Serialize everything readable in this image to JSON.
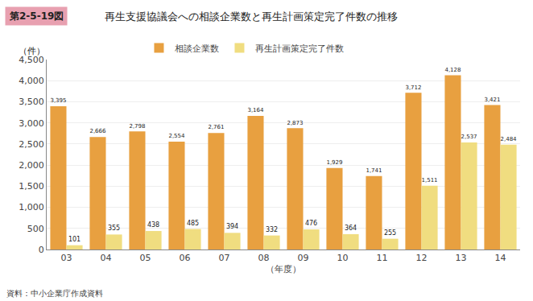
{
  "chart_data": {
    "type": "bar",
    "title": "再生支援協議会への相談企業数と再生計画策定完了件数の推移",
    "annotations": [
      {
        "text": "第2-5-19図",
        "color": "#E8A0B0"
      },
      {
        "text": "資料：中小企業庁作成資料"
      }
    ],
    "xlabel": "（年度）",
    "ylabel": "（件）",
    "categories": [
      "03",
      "04",
      "05",
      "06",
      "07",
      "08",
      "09",
      "10",
      "11",
      "12",
      "13",
      "14"
    ],
    "series": [
      {
        "name": "相談企業数",
        "color": "#E8A040",
        "values": [
          3395,
          2666,
          2798,
          2554,
          2761,
          3164,
          2873,
          1929,
          1741,
          3712,
          4128,
          3421
        ],
        "value_labels": [
          "3,395",
          "2,666",
          "2,798",
          "2,554",
          "2,761",
          "3,164",
          "2,873",
          "1,929",
          "1,741",
          "3,712",
          "4,128",
          "3,421"
        ]
      },
      {
        "name": "再生計画策定完了件数",
        "color": "#F0DD80",
        "values": [
          101,
          355,
          438,
          485,
          394,
          332,
          476,
          364,
          255,
          1511,
          2537,
          2484
        ],
        "value_labels": [
          "101",
          "355",
          "438",
          "485",
          "394",
          "332",
          "476",
          "364",
          "255",
          "1,511",
          "2,537",
          "2,484"
        ]
      }
    ],
    "ylim": [
      0,
      4500
    ],
    "yticks": [
      0,
      500,
      {
        "value": 1000,
        "label": "1,000"
      },
      {
        "value": 1500,
        "label": "1,500"
      },
      {
        "value": 2000,
        "label": "2,000"
      },
      {
        "value": 2500,
        "label": "2,500"
      },
      {
        "value": 3000,
        "label": "3,000"
      },
      {
        "value": 3500,
        "label": "3,500"
      },
      {
        "value": 4000,
        "label": "4,000"
      },
      {
        "value": 4500,
        "label": "4,500"
      }
    ],
    "grid": true,
    "legend": "upper center",
    "data_labels": true
  }
}
